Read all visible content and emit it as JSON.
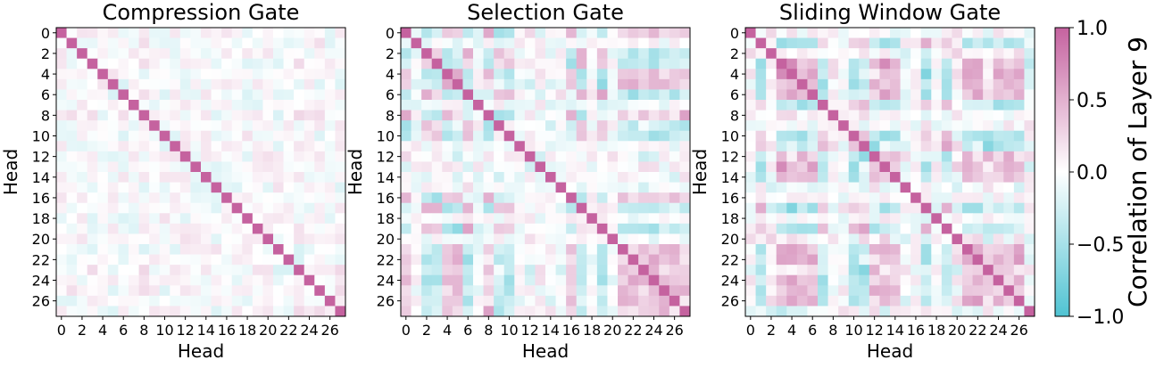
{
  "chart_data": [
    {
      "type": "heatmap",
      "title": "Compression Gate",
      "xlabel": "Head",
      "ylabel": "Head",
      "n": 28,
      "ticks": [
        0,
        2,
        4,
        6,
        8,
        10,
        12,
        14,
        16,
        18,
        20,
        22,
        24,
        26
      ],
      "pattern": "mostly weak correlations (~-0.3..0.3) with a diagonal of 1.0",
      "diagonal_value": 1.0,
      "seed": 11,
      "amplitude": 0.3
    },
    {
      "type": "heatmap",
      "title": "Selection Gate",
      "xlabel": "Head",
      "ylabel": "Head",
      "n": 28,
      "ticks": [
        0,
        2,
        4,
        6,
        8,
        10,
        12,
        14,
        16,
        18,
        20,
        22,
        24,
        26
      ],
      "pattern": "block structure; heads 21-27 strongly positive with each other and with heads 0,4,5,8,16",
      "diagonal_value": 1.0,
      "seed": 23,
      "amplitude": 0.65
    },
    {
      "type": "heatmap",
      "title": "Sliding Window Gate",
      "xlabel": "Head",
      "ylabel": "Head",
      "n": 28,
      "ticks": [
        0,
        2,
        4,
        6,
        8,
        10,
        12,
        14,
        16,
        18,
        20,
        22,
        24,
        26
      ],
      "pattern": "blocks around heads 3-6 and 21-26 positively correlated; heads 1,17,19 negative",
      "diagonal_value": 1.0,
      "seed": 37,
      "amplitude": 0.7
    }
  ],
  "colorbar": {
    "label": "Correlation of Layer 9",
    "min": -1.0,
    "max": 1.0,
    "ticks": [
      "1.0",
      "0.5",
      "0.0",
      "−0.5",
      "−1.0"
    ],
    "tick_values": [
      1.0,
      0.5,
      0.0,
      -0.5,
      -1.0
    ],
    "colors": {
      "negative": "#4fc3d2",
      "neutral": "#ffffff",
      "positive": "#c5629f"
    }
  }
}
